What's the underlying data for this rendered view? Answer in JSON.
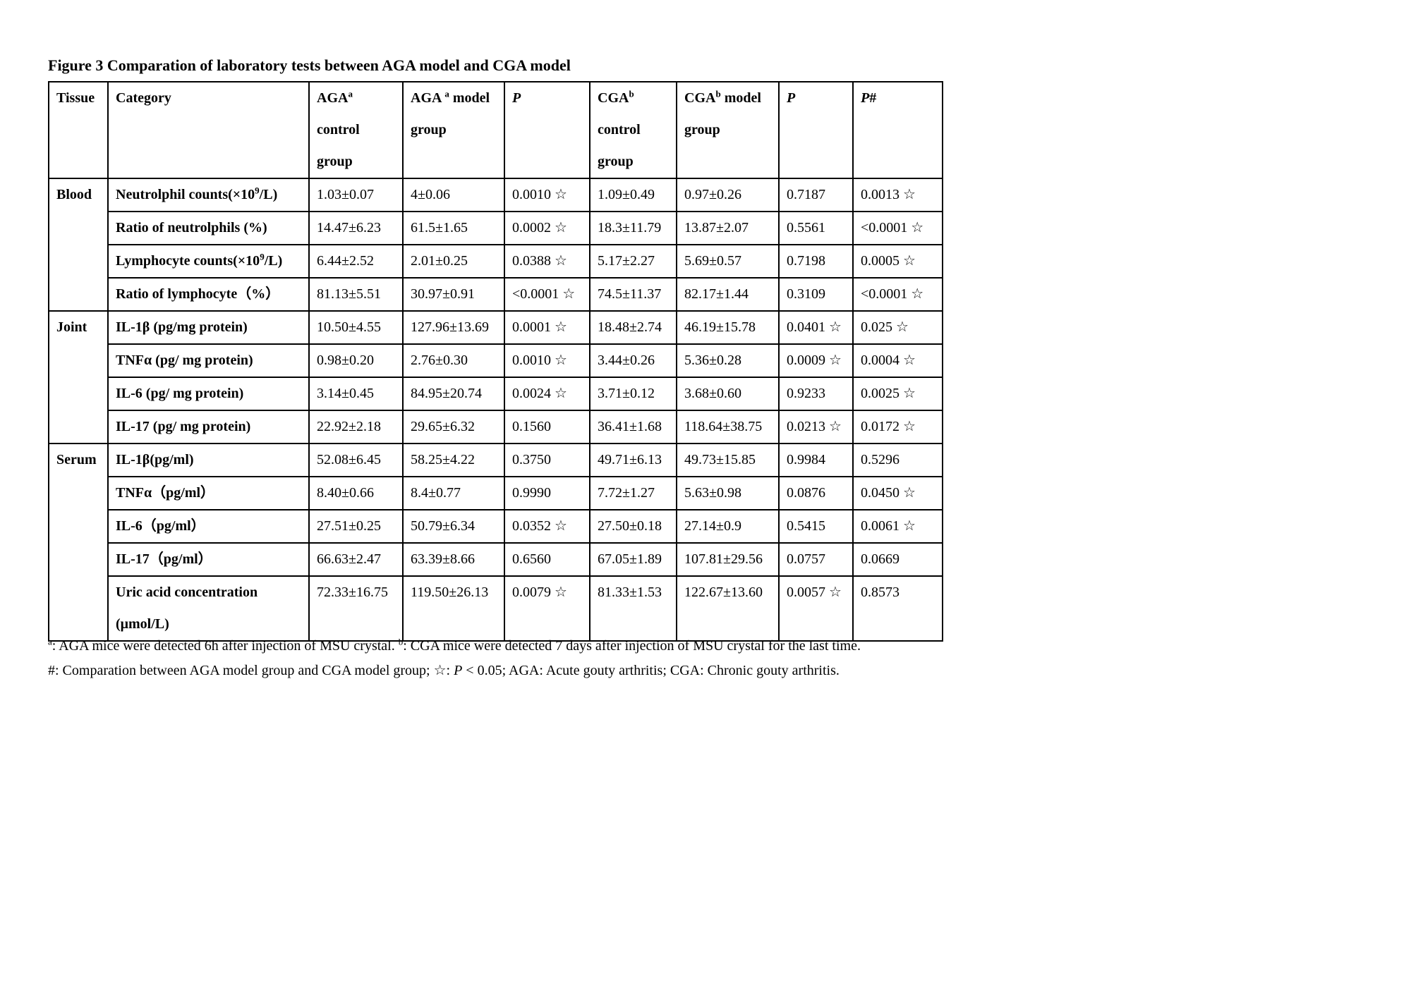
{
  "figure_title": "Figure 3 Comparation of laboratory tests between AGA model and CGA model",
  "table": {
    "headers": [
      {
        "key": "tissue",
        "pre": "Tissue",
        "sup": "",
        "rest": "",
        "italic": false
      },
      {
        "key": "category",
        "pre": "Category",
        "sup": "",
        "rest": "",
        "italic": false
      },
      {
        "key": "aga-control",
        "pre": "AGA",
        "sup": "a",
        "rest": " control group",
        "italic": false
      },
      {
        "key": "aga-model",
        "pre": "AGA ",
        "sup": "a",
        "rest": " model group",
        "italic": false
      },
      {
        "key": "p-aga",
        "pre": "P",
        "sup": "",
        "rest": "",
        "italic": true
      },
      {
        "key": "cga-control",
        "pre": "CGA",
        "sup": "b",
        "rest": " control group",
        "italic": false
      },
      {
        "key": "cga-model",
        "pre": "CGA",
        "sup": "b",
        "rest": " model group",
        "italic": false
      },
      {
        "key": "p-cga",
        "pre": "P",
        "sup": "",
        "rest": "",
        "italic": true
      },
      {
        "key": "p-hash",
        "pre": "P",
        "sup": "",
        "rest": "#",
        "italic": true
      }
    ],
    "rows": [
      {
        "tissue": "Blood",
        "rowspan": 4,
        "cat_pre": "Neutrolphil counts(×10",
        "cat_sup": "9",
        "cat_post": "/L)",
        "values": [
          "1.03±0.07",
          "4±0.06",
          "0.0010 ☆",
          "1.09±0.49",
          "0.97±0.26",
          "0.7187",
          "0.0013 ☆"
        ]
      },
      {
        "cat_pre": "Ratio of neutrolphils (%)",
        "cat_sup": "",
        "cat_post": "",
        "values": [
          "14.47±6.23",
          "61.5±1.65",
          "0.0002 ☆",
          "18.3±11.79",
          "13.87±2.07",
          "0.5561",
          "<0.0001 ☆"
        ]
      },
      {
        "cat_pre": "Lymphocyte counts(×10",
        "cat_sup": "9",
        "cat_post": "/L)",
        "values": [
          "6.44±2.52",
          "2.01±0.25",
          "0.0388 ☆",
          "5.17±2.27",
          "5.69±0.57",
          "0.7198",
          "0.0005 ☆"
        ]
      },
      {
        "cat_pre": "Ratio of lymphocyte（%）",
        "cat_sup": "",
        "cat_post": "",
        "values": [
          "81.13±5.51",
          "30.97±0.91",
          "<0.0001 ☆",
          "74.5±11.37",
          "82.17±1.44",
          "0.3109",
          "<0.0001 ☆"
        ]
      },
      {
        "tissue": "Joint",
        "rowspan": 4,
        "cat_pre": "IL-1β (pg/mg protein)",
        "cat_sup": "",
        "cat_post": "",
        "values": [
          "10.50±4.55",
          "127.96±13.69",
          "0.0001 ☆",
          "18.48±2.74",
          "46.19±15.78",
          "0.0401 ☆",
          "0.025 ☆"
        ]
      },
      {
        "cat_pre": "TNFα (pg/ mg protein)",
        "cat_sup": "",
        "cat_post": "",
        "values": [
          "0.98±0.20",
          "2.76±0.30",
          "0.0010 ☆",
          "3.44±0.26",
          "5.36±0.28",
          "0.0009 ☆",
          "0.0004 ☆"
        ]
      },
      {
        "cat_pre": "IL-6 (pg/ mg protein)",
        "cat_sup": "",
        "cat_post": "",
        "values": [
          "3.14±0.45",
          "84.95±20.74",
          "0.0024 ☆",
          "3.71±0.12",
          "3.68±0.60",
          "0.9233",
          "0.0025 ☆"
        ]
      },
      {
        "cat_pre": "IL-17 (pg/ mg protein)",
        "cat_sup": "",
        "cat_post": "",
        "values": [
          "22.92±2.18",
          "29.65±6.32",
          "0.1560",
          "36.41±1.68",
          "118.64±38.75",
          "0.0213 ☆",
          "0.0172 ☆"
        ]
      },
      {
        "tissue": "Serum",
        "rowspan": 5,
        "cat_pre": "IL-1β(pg/ml)",
        "cat_sup": "",
        "cat_post": "",
        "values": [
          "52.08±6.45",
          "58.25±4.22",
          "0.3750",
          "49.71±6.13",
          "49.73±15.85",
          "0.9984",
          "0.5296"
        ]
      },
      {
        "cat_pre": "TNFα（pg/ml）",
        "cat_sup": "",
        "cat_post": "",
        "values": [
          "8.40±0.66",
          "8.4±0.77",
          "0.9990",
          "7.72±1.27",
          "5.63±0.98",
          "0.0876",
          "0.0450 ☆"
        ]
      },
      {
        "cat_pre": "IL-6（pg/ml）",
        "cat_sup": "",
        "cat_post": "",
        "values": [
          "27.51±0.25",
          "50.79±6.34",
          "0.0352 ☆",
          "27.50±0.18",
          "27.14±0.9",
          "0.5415",
          "0.0061 ☆"
        ]
      },
      {
        "cat_pre": "IL-17（pg/ml）",
        "cat_sup": "",
        "cat_post": "",
        "values": [
          "66.63±2.47",
          "63.39±8.66",
          "0.6560",
          "67.05±1.89",
          "107.81±29.56",
          "0.0757",
          "0.0669"
        ]
      },
      {
        "tall": true,
        "cat_pre": "Uric acid concentration (μmol/L)",
        "cat_sup": "",
        "cat_post": "",
        "values": [
          "72.33±16.75",
          "119.50±26.13",
          "0.0079 ☆",
          "81.33±1.53",
          "122.67±13.60",
          "0.0057 ☆",
          "0.8573"
        ]
      }
    ]
  },
  "footnotes": {
    "line1": [
      {
        "sup": "a"
      },
      {
        "text": ": AGA mice were detected 6h after injection of MSU crystal. "
      },
      {
        "sup": "b"
      },
      {
        "text": ": CGA mice were detected 7 days after injection of MSU crystal for the last time."
      }
    ],
    "line2": [
      {
        "text": "#: Comparation between AGA model group and CGA model group;  ☆: "
      },
      {
        "text": "P",
        "italic": true
      },
      {
        "text": " < 0.05; AGA: Acute gouty arthritis; CGA: Chronic gouty arthritis."
      }
    ]
  }
}
